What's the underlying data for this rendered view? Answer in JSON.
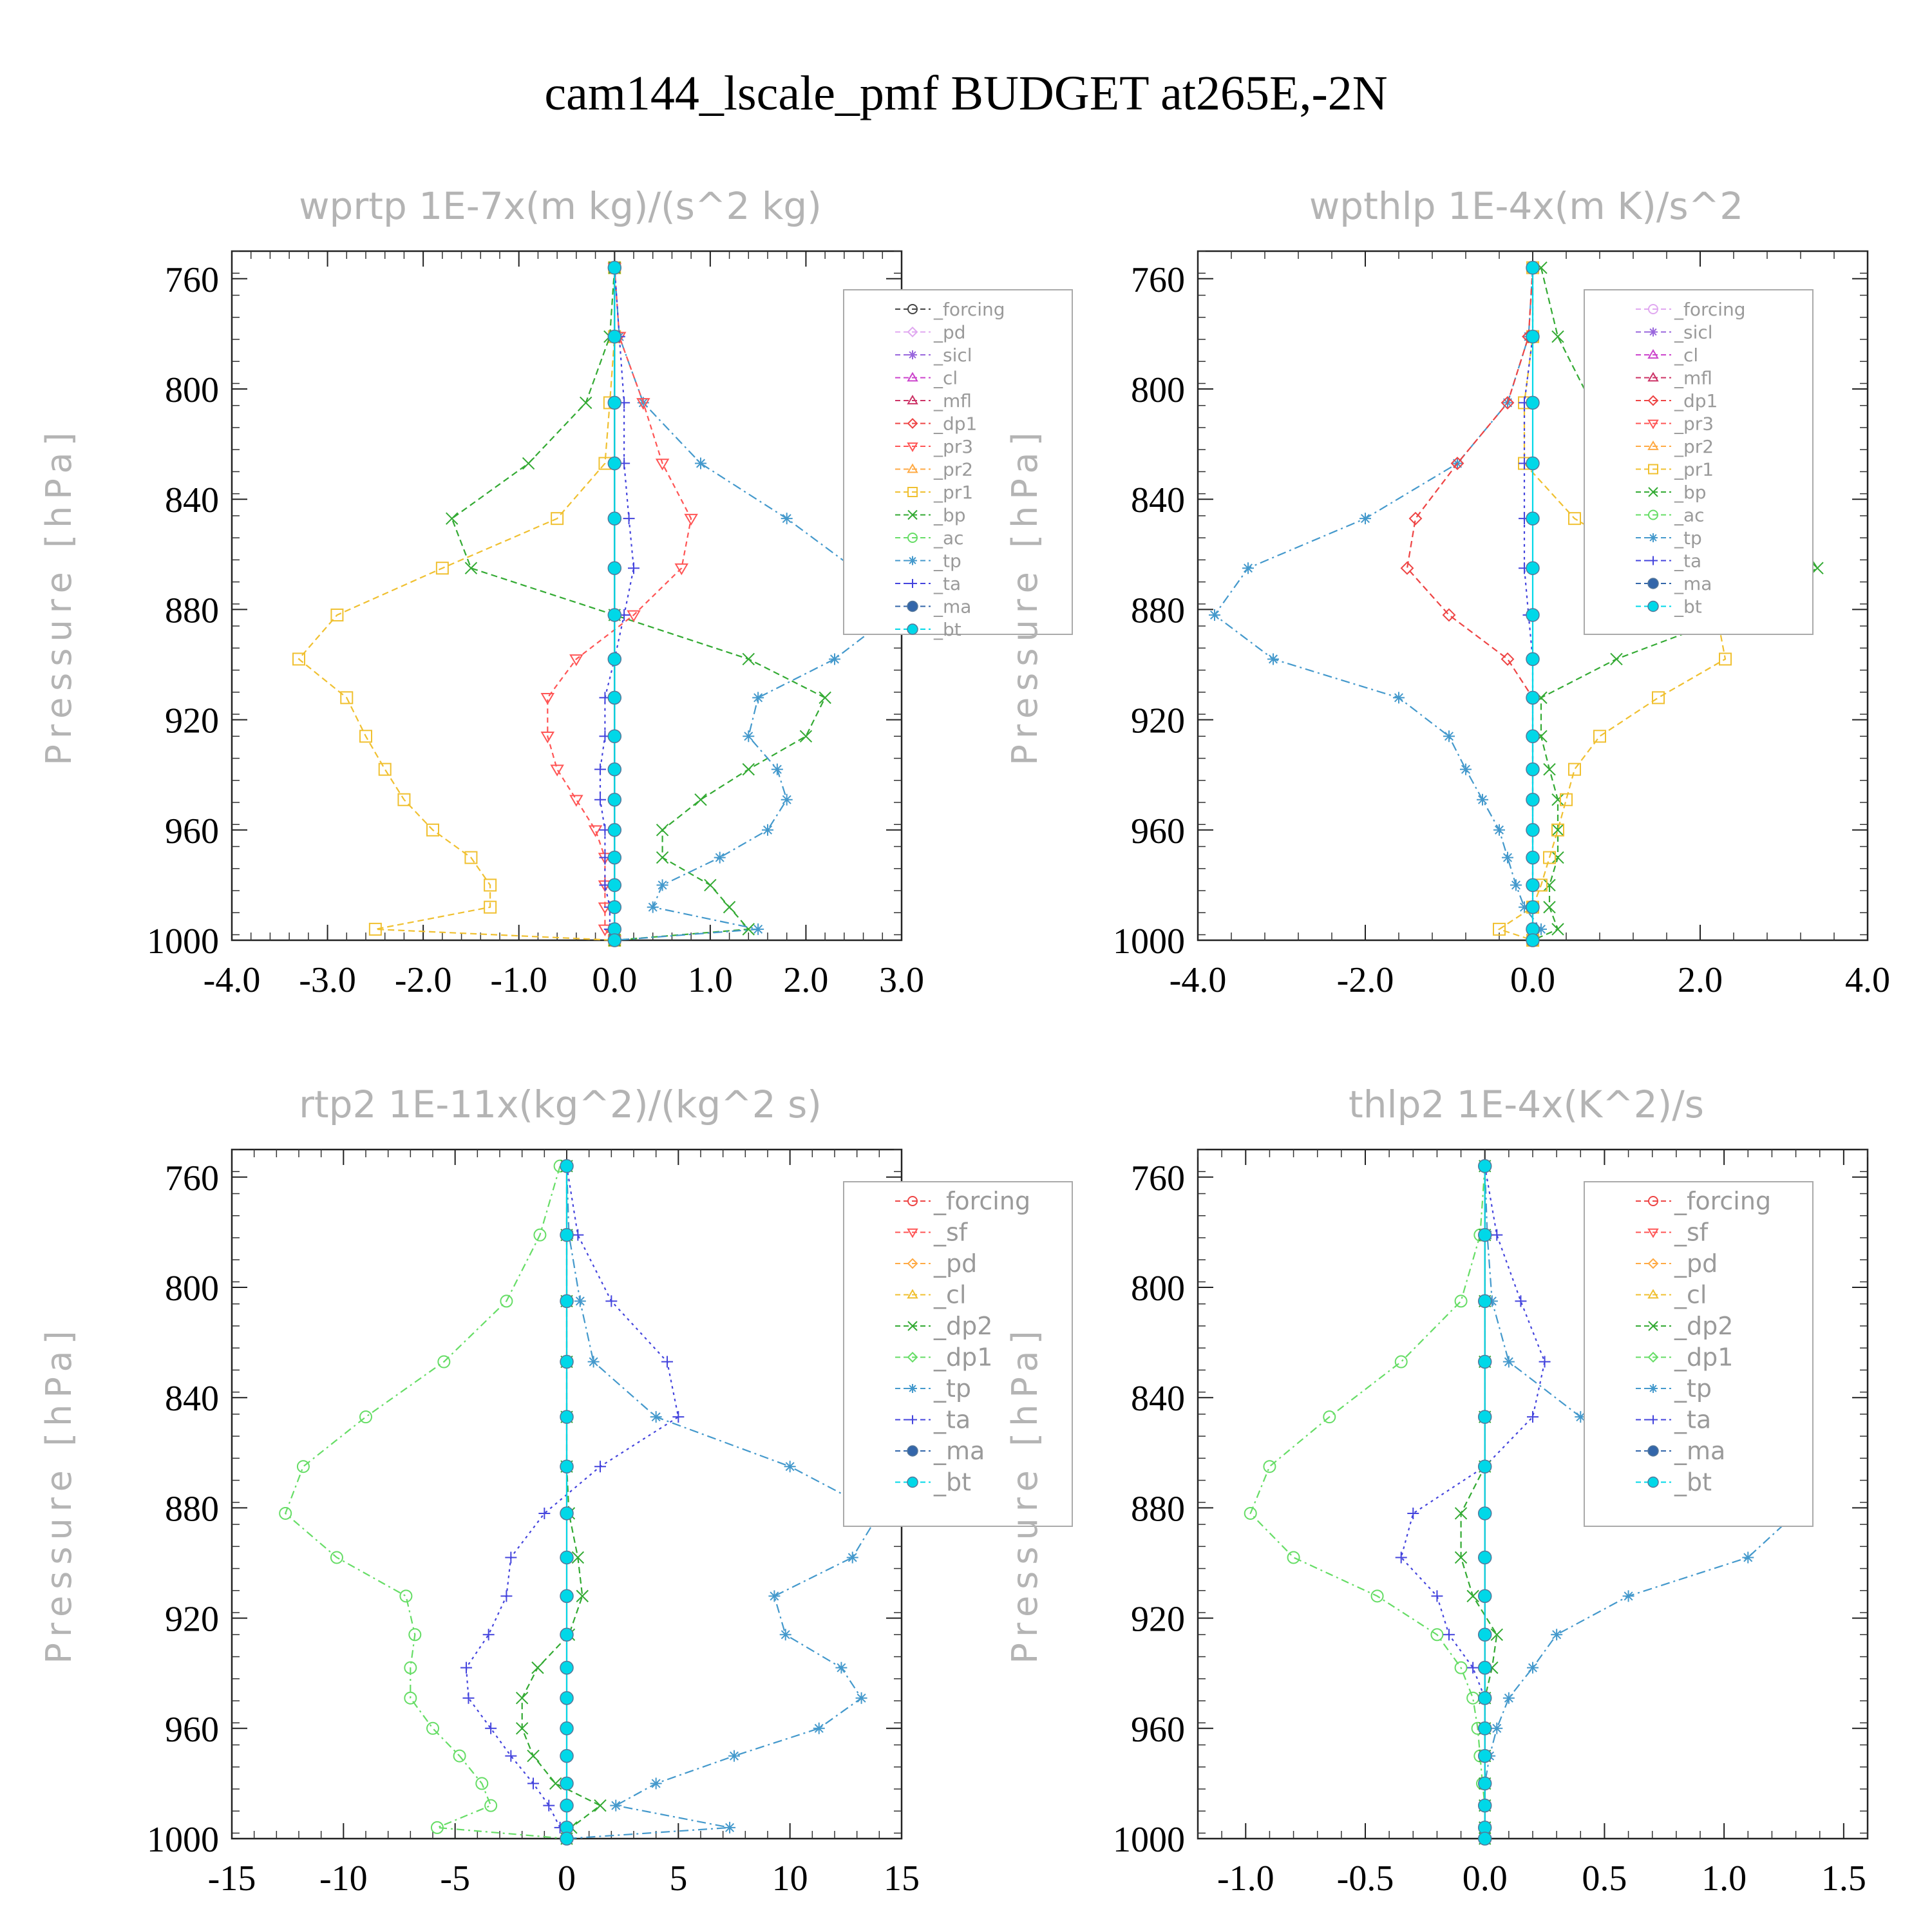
{
  "title": "cam144_lscale_pmf  BUDGET at265E,-2N",
  "colors": {
    "forcing_dark": "#444444",
    "pd_light": "#e0a8f0",
    "sicl": "#9966dd",
    "cl_purple": "#cc44cc",
    "mfl": "#cc3366",
    "dp1": "#ee4444",
    "pr3": "#ff5555",
    "pr2": "#ffaa44",
    "pr1": "#f0c030",
    "bp": "#33aa33",
    "ac": "#66dd66",
    "tp": "#4499cc",
    "ta": "#4444dd",
    "ma": "#3366aa",
    "bt": "#00d8e8"
  },
  "chart_data": [
    {
      "type": "line",
      "title": "wprtp  1E-7x(m kg)/(s^2 kg)",
      "ylabel": "Pressure [hPa]",
      "xlim": [
        -4,
        3
      ],
      "ylim": [
        1000,
        750
      ],
      "xticks": [
        "-4.0",
        "-3.0",
        "-2.0",
        "-1.0",
        "0.0",
        "1.0",
        "2.0",
        "3.0"
      ],
      "xtick_values": [
        -4,
        -3,
        -2,
        -1,
        0,
        1,
        2,
        3
      ],
      "yticks": [
        "760",
        "800",
        "840",
        "880",
        "920",
        "960",
        "1000"
      ],
      "ytick_values": [
        760,
        800,
        840,
        880,
        920,
        960,
        1000
      ],
      "legend_entries": [
        "_forcing",
        "_pd",
        "_sicl",
        "_cl",
        "_mfl",
        "_dp1",
        "_pr3",
        "_pr2",
        "_pr1",
        "_bp",
        "_ac",
        "_tp",
        "_ta",
        "_ma",
        "_bt"
      ],
      "legend_colors": [
        "#444444",
        "#e0a8f0",
        "#9966dd",
        "#cc44cc",
        "#cc3366",
        "#ee4444",
        "#ff5555",
        "#ffaa44",
        "#f0c030",
        "#33aa33",
        "#66dd66",
        "#4499cc",
        "#4444dd",
        "#3366aa",
        "#00d8e8"
      ],
      "levels": [
        756,
        781,
        805,
        827,
        847,
        865,
        882,
        898,
        912,
        926,
        938,
        949,
        960,
        970,
        980,
        988,
        996,
        1000
      ],
      "series": [
        {
          "name": "_pr1",
          "color": "#f0c030",
          "dash": "10,6",
          "marker": "square",
          "values": [
            0,
            0,
            -0.05,
            -0.1,
            -0.6,
            -1.8,
            -2.9,
            -3.3,
            -2.8,
            -2.6,
            -2.4,
            -2.2,
            -1.9,
            -1.5,
            -1.3,
            -1.3,
            -2.5,
            0
          ]
        },
        {
          "name": "_bp",
          "color": "#33aa33",
          "dash": "10,6",
          "marker": "x",
          "values": [
            0,
            -0.05,
            -0.3,
            -0.9,
            -1.7,
            -1.5,
            0,
            1.4,
            2.2,
            2.0,
            1.4,
            0.9,
            0.5,
            0.5,
            1.0,
            1.2,
            1.4,
            0
          ]
        },
        {
          "name": "_tp",
          "color": "#4499cc",
          "dash": "14,6,3,6",
          "marker": "star",
          "values": [
            0,
            0.05,
            0.3,
            0.9,
            1.8,
            2.5,
            2.9,
            2.3,
            1.5,
            1.4,
            1.7,
            1.8,
            1.6,
            1.1,
            0.5,
            0.4,
            1.5,
            0
          ]
        },
        {
          "name": "_pr3",
          "color": "#ff5555",
          "dash": "8,6",
          "marker": "tri-down",
          "values": [
            0,
            0.05,
            0.3,
            0.5,
            0.8,
            0.7,
            0.2,
            -0.4,
            -0.7,
            -0.7,
            -0.6,
            -0.4,
            -0.2,
            -0.1,
            -0.1,
            -0.1,
            -0.1,
            0
          ]
        },
        {
          "name": "_ta",
          "color": "#4444dd",
          "dash": "4,6",
          "marker": "plus",
          "values": [
            0,
            0.05,
            0.1,
            0.1,
            0.15,
            0.2,
            0.1,
            0,
            -0.1,
            -0.1,
            -0.15,
            -0.15,
            -0.1,
            -0.1,
            -0.1,
            -0.05,
            -0.05,
            0
          ]
        },
        {
          "name": "_forcing",
          "color": "#444444",
          "dash": "",
          "marker": "circle",
          "values": [
            0,
            0,
            0,
            0,
            0,
            0,
            0,
            0,
            0,
            0,
            0,
            0,
            0,
            0,
            0,
            0,
            0,
            0
          ]
        },
        {
          "name": "_bt",
          "color": "#00d8e8",
          "dash": "",
          "marker": "dot",
          "values": [
            0,
            0,
            0,
            0,
            0,
            0,
            0,
            0,
            0,
            0,
            0,
            0,
            0,
            0,
            0,
            0,
            0,
            0
          ]
        }
      ]
    },
    {
      "type": "line",
      "title": "wpthlp  1E-4x(m K)/s^2",
      "ylabel": "Pressure [hPa]",
      "xlim": [
        -4,
        4
      ],
      "ylim": [
        1000,
        750
      ],
      "xticks": [
        "-4.0",
        "-2.0",
        "0.0",
        "2.0",
        "4.0"
      ],
      "xtick_values": [
        -4,
        -2,
        0,
        2,
        4
      ],
      "yticks": [
        "760",
        "800",
        "840",
        "880",
        "920",
        "960",
        "1000"
      ],
      "ytick_values": [
        760,
        800,
        840,
        880,
        920,
        960,
        1000
      ],
      "legend_entries": [
        "_forcing",
        "_sicl",
        "_cl",
        "_mfl",
        "_dp1",
        "_pr3",
        "_pr2",
        "_pr1",
        "_bp",
        "_ac",
        "_tp",
        "_ta",
        "_ma",
        "_bt"
      ],
      "legend_colors": [
        "#e0a8f0",
        "#9966dd",
        "#cc44cc",
        "#cc3366",
        "#ee4444",
        "#ff5555",
        "#ffaa44",
        "#f0c030",
        "#33aa33",
        "#66dd66",
        "#4499cc",
        "#4444dd",
        "#3366aa",
        "#00d8e8"
      ],
      "levels": [
        756,
        781,
        805,
        827,
        847,
        865,
        882,
        898,
        912,
        926,
        938,
        949,
        960,
        970,
        980,
        988,
        996,
        1000
      ],
      "series": [
        {
          "name": "_tp",
          "color": "#4499cc",
          "dash": "14,6,3,6",
          "marker": "star",
          "values": [
            0,
            -0.05,
            -0.3,
            -0.9,
            -2.0,
            -3.4,
            -3.8,
            -3.1,
            -1.6,
            -1.0,
            -0.8,
            -0.6,
            -0.4,
            -0.3,
            -0.2,
            -0.1,
            0.1,
            0
          ]
        },
        {
          "name": "_bp",
          "color": "#33aa33",
          "dash": "10,6",
          "marker": "x",
          "values": [
            0.1,
            0.3,
            0.7,
            1.7,
            3.0,
            3.4,
            2.4,
            1.0,
            0.1,
            0.1,
            0.2,
            0.3,
            0.3,
            0.3,
            0.2,
            0.2,
            0.3,
            0
          ]
        },
        {
          "name": "_pr1",
          "color": "#f0c030",
          "dash": "10,6",
          "marker": "square",
          "values": [
            0,
            0,
            -0.1,
            -0.1,
            0.5,
            1.5,
            2.2,
            2.3,
            1.5,
            0.8,
            0.5,
            0.4,
            0.3,
            0.2,
            0.1,
            0,
            -0.4,
            0
          ]
        },
        {
          "name": "_dp1",
          "color": "#ee4444",
          "dash": "10,6",
          "marker": "diamond",
          "values": [
            0,
            -0.05,
            -0.3,
            -0.9,
            -1.4,
            -1.5,
            -1.0,
            -0.3,
            0,
            0,
            0,
            0,
            0,
            0,
            0,
            0,
            0,
            0
          ]
        },
        {
          "name": "_ta",
          "color": "#4444dd",
          "dash": "4,6",
          "marker": "plus",
          "values": [
            0,
            0,
            -0.1,
            -0.1,
            -0.1,
            -0.1,
            -0.05,
            0,
            0,
            0,
            0,
            0,
            0,
            0,
            0,
            0,
            0,
            0
          ]
        },
        {
          "name": "_bt",
          "color": "#00d8e8",
          "dash": "",
          "marker": "dot",
          "values": [
            0,
            0,
            0,
            0,
            0,
            0,
            0,
            0,
            0,
            0,
            0,
            0,
            0,
            0,
            0,
            0,
            0,
            0
          ]
        }
      ]
    },
    {
      "type": "line",
      "title": "rtp2  1E-11x(kg^2)/(kg^2 s)",
      "ylabel": "Pressure [hPa]",
      "xlim": [
        -15,
        15
      ],
      "ylim": [
        1000,
        750
      ],
      "xticks": [
        "-15",
        "-10",
        "-5",
        "0",
        "5",
        "10",
        "15"
      ],
      "xtick_values": [
        -15,
        -10,
        -5,
        0,
        5,
        10,
        15
      ],
      "yticks": [
        "760",
        "800",
        "840",
        "880",
        "920",
        "960",
        "1000"
      ],
      "ytick_values": [
        760,
        800,
        840,
        880,
        920,
        960,
        1000
      ],
      "legend_entries": [
        "_forcing",
        "_sf",
        "_pd",
        "_cl",
        "_dp2",
        "_dp1",
        "_tp",
        "_ta",
        "_ma",
        "_bt"
      ],
      "legend_colors": [
        "#ee4444",
        "#ff5555",
        "#ffaa44",
        "#f0c030",
        "#33aa33",
        "#66dd66",
        "#4499cc",
        "#4444dd",
        "#3366aa",
        "#00d8e8"
      ],
      "levels": [
        756,
        781,
        805,
        827,
        847,
        865,
        882,
        898,
        912,
        926,
        938,
        949,
        960,
        970,
        980,
        988,
        996,
        1000
      ],
      "series": [
        {
          "name": "_dp1",
          "color": "#66dd66",
          "dash": "12,6,3,6",
          "marker": "circle",
          "values": [
            -0.3,
            -1.2,
            -2.7,
            -5.5,
            -9,
            -11.8,
            -12.6,
            -10.3,
            -7.2,
            -6.8,
            -7,
            -7,
            -6,
            -4.8,
            -3.8,
            -3.4,
            -5.8,
            0
          ]
        },
        {
          "name": "_tp",
          "color": "#4499cc",
          "dash": "14,6,3,6",
          "marker": "star",
          "values": [
            0,
            0.1,
            0.6,
            1.2,
            4,
            10,
            14,
            12.8,
            9.3,
            9.8,
            12.3,
            13.2,
            11.3,
            7.5,
            4,
            2.2,
            7.3,
            0
          ]
        },
        {
          "name": "_ta",
          "color": "#4444dd",
          "dash": "4,6",
          "marker": "plus",
          "values": [
            0,
            0.5,
            2,
            4.5,
            5,
            1.5,
            -1,
            -2.5,
            -2.7,
            -3.5,
            -4.5,
            -4.4,
            -3.4,
            -2.5,
            -1.5,
            -0.8,
            -0.3,
            0
          ]
        },
        {
          "name": "_dp2",
          "color": "#33aa33",
          "dash": "10,6",
          "marker": "x",
          "values": [
            0,
            0,
            0,
            0,
            0,
            0,
            0.1,
            0.5,
            0.7,
            0.1,
            -1.3,
            -2,
            -2,
            -1.5,
            -0.5,
            1.5,
            0.2,
            0
          ]
        },
        {
          "name": "_forcing",
          "color": "#ee4444",
          "dash": "",
          "marker": "diamond",
          "values": [
            0,
            0,
            0,
            0,
            0,
            0,
            0,
            0,
            0,
            0,
            0,
            0,
            0,
            0,
            0,
            0,
            0,
            0
          ]
        },
        {
          "name": "_bt",
          "color": "#00d8e8",
          "dash": "",
          "marker": "dot",
          "values": [
            0,
            0,
            0,
            0,
            0,
            0,
            0,
            0,
            0,
            0,
            0,
            0,
            0,
            0,
            0,
            0,
            0,
            0
          ]
        }
      ]
    },
    {
      "type": "line",
      "title": "thlp2  1E-4x(K^2)/s",
      "ylabel": "Pressure [hPa]",
      "xlim": [
        -1.2,
        1.6
      ],
      "ylim": [
        1000,
        750
      ],
      "xticks": [
        "-1.0",
        "-0.5",
        "0.0",
        "0.5",
        "1.0",
        "1.5"
      ],
      "xtick_values": [
        -1,
        -0.5,
        0,
        0.5,
        1,
        1.5
      ],
      "yticks": [
        "760",
        "800",
        "840",
        "880",
        "920",
        "960",
        "1000"
      ],
      "ytick_values": [
        760,
        800,
        840,
        880,
        920,
        960,
        1000
      ],
      "legend_entries": [
        "_forcing",
        "_sf",
        "_pd",
        "_cl",
        "_dp2",
        "_dp1",
        "_tp",
        "_ta",
        "_ma",
        "_bt"
      ],
      "legend_colors": [
        "#ee4444",
        "#ff5555",
        "#ffaa44",
        "#f0c030",
        "#33aa33",
        "#66dd66",
        "#4499cc",
        "#4444dd",
        "#3366aa",
        "#00d8e8"
      ],
      "levels": [
        756,
        781,
        805,
        827,
        847,
        865,
        882,
        898,
        912,
        926,
        938,
        949,
        960,
        970,
        980,
        988,
        996,
        1000
      ],
      "series": [
        {
          "name": "_dp1",
          "color": "#66dd66",
          "dash": "12,6,3,6",
          "marker": "circle",
          "values": [
            0,
            -0.02,
            -0.1,
            -0.35,
            -0.65,
            -0.9,
            -0.98,
            -0.8,
            -0.45,
            -0.2,
            -0.1,
            -0.05,
            -0.03,
            -0.02,
            -0.01,
            0,
            0,
            0
          ]
        },
        {
          "name": "_tp",
          "color": "#4499cc",
          "dash": "14,6,3,6",
          "marker": "star",
          "values": [
            0,
            0.01,
            0.03,
            0.1,
            0.4,
            0.8,
            1.3,
            1.1,
            0.6,
            0.3,
            0.2,
            0.1,
            0.05,
            0.02,
            0,
            0,
            0,
            0
          ]
        },
        {
          "name": "_ta",
          "color": "#4444dd",
          "dash": "4,6",
          "marker": "plus",
          "values": [
            0,
            0.05,
            0.15,
            0.25,
            0.2,
            0,
            -0.3,
            -0.35,
            -0.2,
            -0.15,
            -0.05,
            0,
            0,
            0,
            0,
            0,
            0,
            0
          ]
        },
        {
          "name": "_dp2",
          "color": "#33aa33",
          "dash": "10,6",
          "marker": "x",
          "values": [
            0,
            0,
            0,
            0,
            0,
            0,
            -0.1,
            -0.1,
            -0.05,
            0.05,
            0.03,
            0,
            0,
            0,
            0,
            0,
            0,
            0
          ]
        },
        {
          "name": "_forcing",
          "color": "#ee4444",
          "dash": "",
          "marker": "diamond",
          "values": [
            0,
            0,
            0,
            0,
            0,
            0,
            0,
            0,
            0,
            0,
            0,
            0,
            0,
            0,
            0,
            0,
            0,
            0
          ]
        },
        {
          "name": "_bt",
          "color": "#00d8e8",
          "dash": "",
          "marker": "dot",
          "values": [
            0,
            0,
            0,
            0,
            0,
            0,
            0,
            0,
            0,
            0,
            0,
            0,
            0,
            0,
            0,
            0,
            0,
            0
          ]
        }
      ]
    }
  ]
}
